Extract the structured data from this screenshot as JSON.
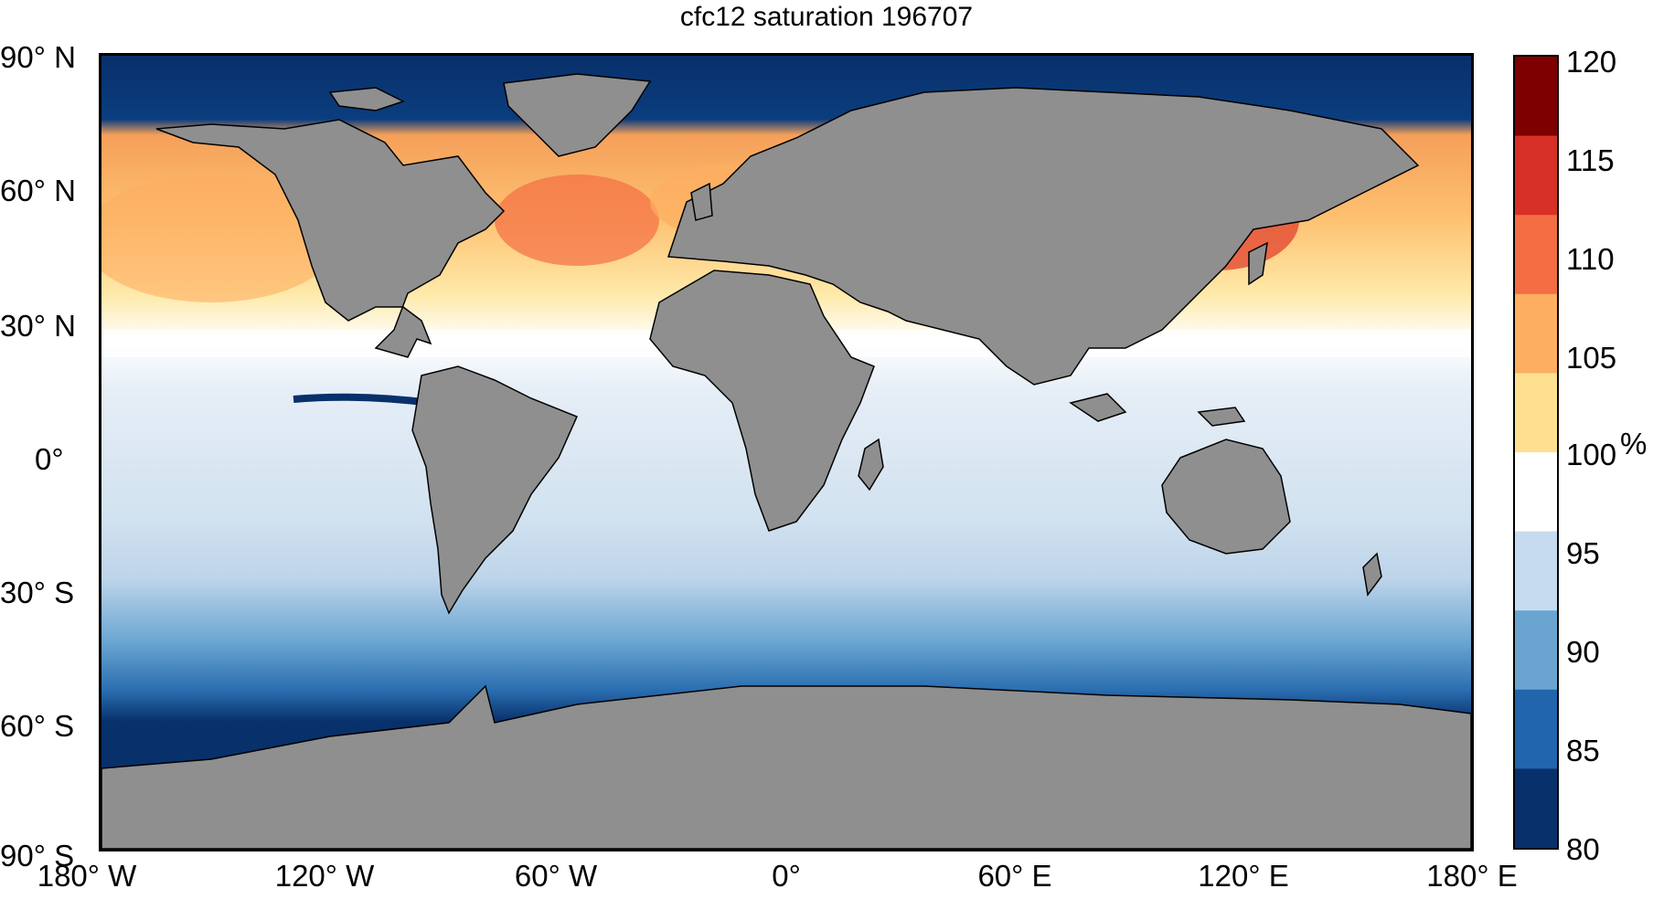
{
  "title": "cfc12 saturation 196707",
  "lat_labels": [
    "90° N",
    "60° N",
    "30° N",
    "0°",
    "30° S",
    "60° S",
    "90° S"
  ],
  "lon_labels": [
    "180° W",
    "120° W",
    "60° W",
    "0°",
    "60° E",
    "120° E",
    "180° E"
  ],
  "colorbar": {
    "ticks": [
      "120",
      "115",
      "110",
      "105",
      "100",
      "95",
      "90",
      "85",
      "80"
    ],
    "unit": "%",
    "range": [
      80,
      120
    ],
    "colors": [
      "#08306b",
      "#2166ac",
      "#6aa5d1",
      "#c6dbef",
      "#ffffff",
      "#fee090",
      "#fdae61",
      "#f46d43",
      "#d73027",
      "#7f0000"
    ]
  },
  "colors": {
    "land": "#8f8f8f",
    "coast": "#000000",
    "ocean_base": "#d6e3ef"
  }
}
